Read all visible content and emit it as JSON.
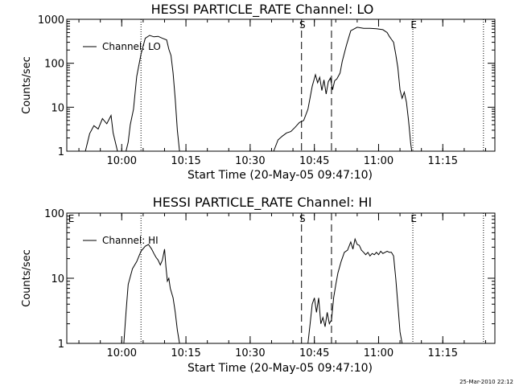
{
  "footer_timestamp": "25-Mar-2010 22:12",
  "chart_data": [
    {
      "type": "line",
      "title": "HESSI PARTICLE_RATE Channel: LO",
      "xlabel": "Start Time (20-May-05 09:47:10)",
      "ylabel": "Counts/sec",
      "yscale": "log",
      "xlim": [
        "09:47:10",
        "11:27:10"
      ],
      "ylim": [
        1,
        1000
      ],
      "x_ticks": [
        "10:00",
        "10:15",
        "10:30",
        "10:45",
        "11:00",
        "11:15"
      ],
      "y_ticks": [
        "1",
        "10",
        "100",
        "1000"
      ],
      "legend": {
        "label": "Channel: LO",
        "placement": "top-left"
      },
      "markers": [
        {
          "type": "label",
          "text": "S",
          "time": "10:41:30"
        },
        {
          "type": "label",
          "text": "E",
          "time": "11:07:30"
        },
        {
          "type": "dashed",
          "time": "10:42:00"
        },
        {
          "type": "dashed",
          "time": "10:49:00"
        },
        {
          "type": "dotted",
          "time": "10:04:30"
        },
        {
          "type": "dotted",
          "time": "11:08:00"
        },
        {
          "type": "dotted",
          "time": "11:24:30"
        }
      ],
      "series": [
        {
          "name": "Channel: LO",
          "segments": [
            [
              [
                "09:51:30",
                1
              ],
              [
                "09:52:30",
                2.5
              ],
              [
                "09:53:30",
                3.8
              ],
              [
                "09:54:30",
                3.2
              ],
              [
                "09:55:30",
                5.5
              ],
              [
                "09:56:30",
                4.2
              ],
              [
                "09:57:30",
                6.5
              ],
              [
                "09:58:00",
                2.6
              ],
              [
                "09:59:00",
                1
              ]
            ],
            [
              [
                "10:01:00",
                1
              ],
              [
                "10:01:30",
                1.6
              ],
              [
                "10:02:00",
                4
              ],
              [
                "10:02:45",
                9
              ],
              [
                "10:03:30",
                50
              ],
              [
                "10:04:30",
                160
              ],
              [
                "10:05:30",
                370
              ],
              [
                "10:06:30",
                430
              ],
              [
                "10:07:30",
                400
              ],
              [
                "10:08:30",
                410
              ],
              [
                "10:09:30",
                370
              ],
              [
                "10:10:30",
                340
              ],
              [
                "10:11:00",
                210
              ],
              [
                "10:11:30",
                150
              ],
              [
                "10:12:00",
                60
              ],
              [
                "10:12:30",
                15
              ],
              [
                "10:13:00",
                3
              ],
              [
                "10:13:30",
                1
              ]
            ],
            [
              [
                "10:35:30",
                1
              ],
              [
                "10:36:30",
                1.8
              ],
              [
                "10:37:30",
                2.2
              ],
              [
                "10:38:30",
                2.6
              ],
              [
                "10:39:30",
                2.8
              ],
              [
                "10:40:30",
                3.5
              ],
              [
                "10:41:30",
                4.5
              ],
              [
                "10:42:30",
                5
              ],
              [
                "10:43:30",
                9
              ],
              [
                "10:44:30",
                30
              ],
              [
                "10:45:15",
                55
              ],
              [
                "10:45:45",
                36
              ],
              [
                "10:46:15",
                48
              ],
              [
                "10:46:45",
                24
              ],
              [
                "10:47:15",
                42
              ],
              [
                "10:47:45",
                20
              ],
              [
                "10:48:15",
                38
              ],
              [
                "10:48:45",
                46
              ],
              [
                "10:49:15",
                25
              ],
              [
                "10:49:45",
                40
              ],
              [
                "10:50:15",
                44
              ],
              [
                "10:51:00",
                60
              ],
              [
                "10:51:30",
                110
              ],
              [
                "10:52:30",
                260
              ],
              [
                "10:53:30",
                550
              ],
              [
                "10:55:00",
                660
              ],
              [
                "10:56:30",
                620
              ],
              [
                "10:58:00",
                620
              ],
              [
                "10:59:30",
                610
              ],
              [
                "11:01:00",
                580
              ],
              [
                "11:02:00",
                500
              ],
              [
                "11:02:30",
                410
              ],
              [
                "11:03:00",
                350
              ],
              [
                "11:03:30",
                300
              ],
              [
                "11:04:00",
                160
              ],
              [
                "11:04:30",
                80
              ],
              [
                "11:05:00",
                25
              ],
              [
                "11:05:30",
                16
              ],
              [
                "11:06:00",
                22
              ],
              [
                "11:06:30",
                13
              ],
              [
                "11:07:00",
                5
              ],
              [
                "11:07:30",
                1.5
              ],
              [
                "11:07:45",
                1
              ]
            ]
          ]
        }
      ]
    },
    {
      "type": "line",
      "title": "HESSI PARTICLE_RATE Channel: HI",
      "xlabel": "Start Time (20-May-05 09:47:10)",
      "ylabel": "Counts/sec",
      "yscale": "log",
      "xlim": [
        "09:47:10",
        "11:27:10"
      ],
      "ylim": [
        1,
        100
      ],
      "x_ticks": [
        "10:00",
        "10:15",
        "10:30",
        "10:45",
        "11:00",
        "11:15"
      ],
      "y_ticks": [
        "1",
        "10",
        "100"
      ],
      "legend": {
        "label": "Channel: HI",
        "placement": "top-left"
      },
      "markers": [
        {
          "type": "label",
          "text": "E",
          "time": "09:47:30"
        },
        {
          "type": "label",
          "text": "S",
          "time": "10:41:30"
        },
        {
          "type": "label",
          "text": "E",
          "time": "11:07:30"
        },
        {
          "type": "dashed",
          "time": "10:42:00"
        },
        {
          "type": "dashed",
          "time": "10:49:00"
        },
        {
          "type": "dotted",
          "time": "10:04:30"
        },
        {
          "type": "dotted",
          "time": "11:08:00"
        },
        {
          "type": "dotted",
          "time": "11:24:30"
        }
      ],
      "series": [
        {
          "name": "Channel: HI",
          "segments": [
            [
              [
                "10:00:30",
                1
              ],
              [
                "10:01:00",
                3
              ],
              [
                "10:01:30",
                8
              ],
              [
                "10:02:30",
                14
              ],
              [
                "10:03:30",
                18
              ],
              [
                "10:04:30",
                26
              ],
              [
                "10:05:30",
                31
              ],
              [
                "10:06:15",
                33
              ],
              [
                "10:07:00",
                28
              ],
              [
                "10:07:30",
                24
              ],
              [
                "10:08:00",
                21
              ],
              [
                "10:08:30",
                19
              ],
              [
                "10:09:00",
                16
              ],
              [
                "10:09:30",
                19
              ],
              [
                "10:10:00",
                28
              ],
              [
                "10:10:20",
                15
              ],
              [
                "10:10:40",
                9
              ],
              [
                "10:11:00",
                10
              ],
              [
                "10:11:20",
                7
              ],
              [
                "10:12:00",
                5
              ],
              [
                "10:12:30",
                3
              ],
              [
                "10:13:00",
                1.6
              ],
              [
                "10:13:30",
                1
              ]
            ],
            [
              [
                "10:43:30",
                1
              ],
              [
                "10:44:00",
                2
              ],
              [
                "10:44:30",
                4
              ],
              [
                "10:45:00",
                5
              ],
              [
                "10:45:30",
                3
              ],
              [
                "10:46:00",
                5
              ],
              [
                "10:46:30",
                2
              ],
              [
                "10:47:00",
                2.5
              ],
              [
                "10:47:30",
                1.8
              ],
              [
                "10:48:00",
                3
              ],
              [
                "10:48:30",
                2
              ],
              [
                "10:49:00",
                2.3
              ],
              [
                "10:49:30",
                5
              ],
              [
                "10:50:00",
                8
              ],
              [
                "10:50:30",
                12
              ],
              [
                "10:51:15",
                18
              ],
              [
                "10:52:00",
                25
              ],
              [
                "10:52:45",
                27
              ],
              [
                "10:53:30",
                36
              ],
              [
                "10:54:00",
                28
              ],
              [
                "10:54:30",
                40
              ],
              [
                "10:55:00",
                33
              ],
              [
                "10:55:30",
                32
              ],
              [
                "10:56:00",
                27
              ],
              [
                "10:56:30",
                25
              ],
              [
                "10:57:00",
                23
              ],
              [
                "10:57:30",
                25
              ],
              [
                "10:58:00",
                22
              ],
              [
                "10:58:30",
                24
              ],
              [
                "10:59:00",
                23
              ],
              [
                "10:59:30",
                25
              ],
              [
                "11:00:00",
                23
              ],
              [
                "11:00:30",
                26
              ],
              [
                "11:01:00",
                24
              ],
              [
                "11:01:30",
                25
              ],
              [
                "11:02:00",
                26
              ],
              [
                "11:02:30",
                25
              ],
              [
                "11:03:00",
                25
              ],
              [
                "11:03:30",
                22
              ],
              [
                "11:04:00",
                10
              ],
              [
                "11:04:30",
                4
              ],
              [
                "11:05:00",
                1.5
              ],
              [
                "11:05:30",
                1
              ]
            ]
          ]
        }
      ]
    }
  ]
}
